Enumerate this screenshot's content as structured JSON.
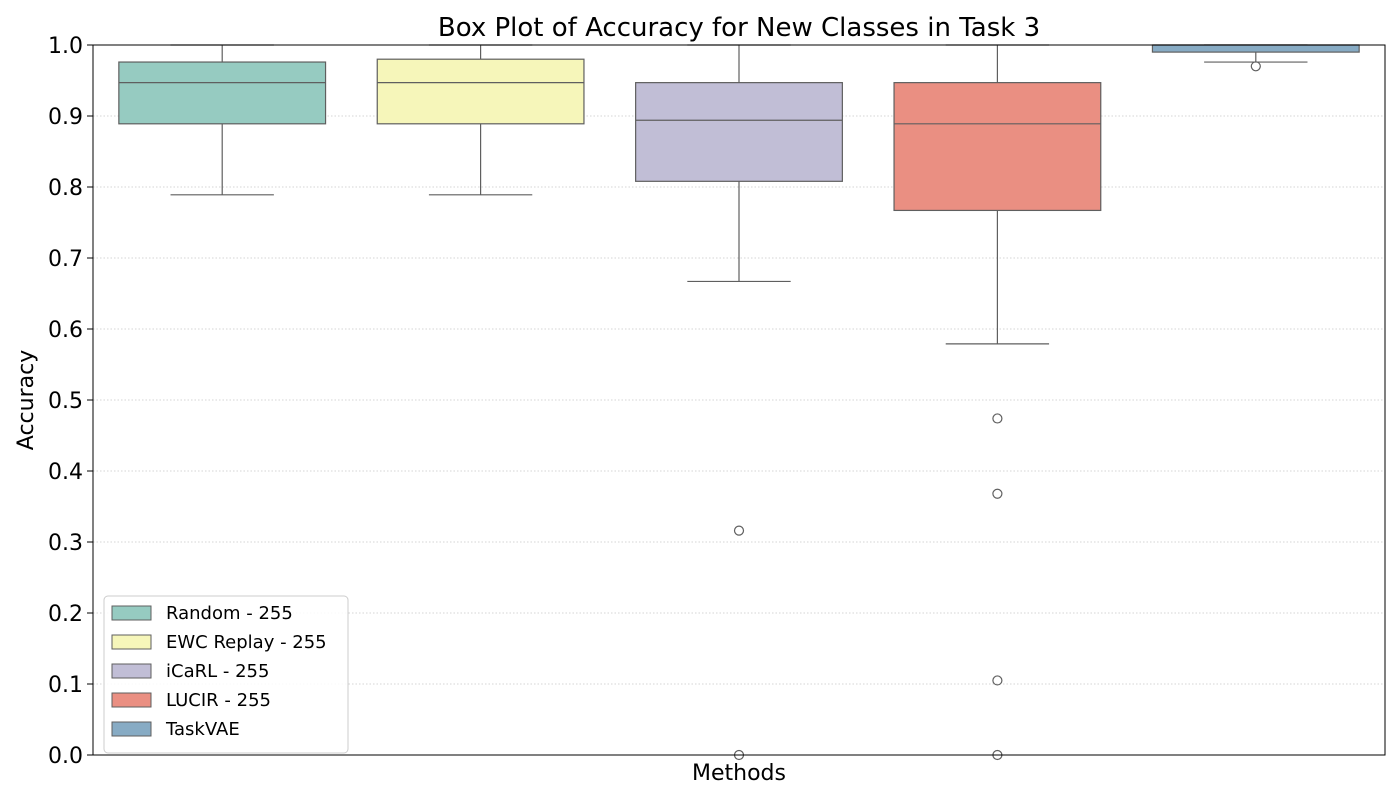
{
  "chart_data": {
    "type": "box",
    "title": "Box Plot of Accuracy for New Classes in Task 3",
    "xlabel": "Methods",
    "ylabel": "Accuracy",
    "ylim": [
      0.0,
      1.0
    ],
    "yticks": [
      "0.0",
      "0.1",
      "0.2",
      "0.3",
      "0.4",
      "0.5",
      "0.6",
      "0.7",
      "0.8",
      "0.9",
      "1.0"
    ],
    "grid": "horizontal dotted",
    "legend_position": "lower-left",
    "series": [
      {
        "name": "Random - 255",
        "color": "#96cbc1",
        "whisker_low": 0.789,
        "q1": 0.889,
        "median": 0.947,
        "q3": 0.976,
        "whisker_high": 1.0,
        "outliers": []
      },
      {
        "name": "EWC Replay - 255",
        "color": "#f6f6ba",
        "whisker_low": 0.789,
        "q1": 0.889,
        "median": 0.947,
        "q3": 0.98,
        "whisker_high": 1.0,
        "outliers": []
      },
      {
        "name": "iCaRL - 255",
        "color": "#c1bed6",
        "whisker_low": 0.667,
        "q1": 0.808,
        "median": 0.894,
        "q3": 0.947,
        "whisker_high": 1.0,
        "outliers": [
          0.316,
          0.0
        ]
      },
      {
        "name": "LUCIR - 255",
        "color": "#ea8f82",
        "whisker_low": 0.579,
        "q1": 0.767,
        "median": 0.889,
        "q3": 0.947,
        "whisker_high": 1.0,
        "outliers": [
          0.474,
          0.368,
          0.105,
          0.0
        ]
      },
      {
        "name": "TaskVAE",
        "color": "#87abc4",
        "whisker_low": 0.976,
        "q1": 0.99,
        "median": 1.0,
        "q3": 1.0,
        "whisker_high": 1.0,
        "outliers": [
          0.97
        ]
      }
    ]
  }
}
